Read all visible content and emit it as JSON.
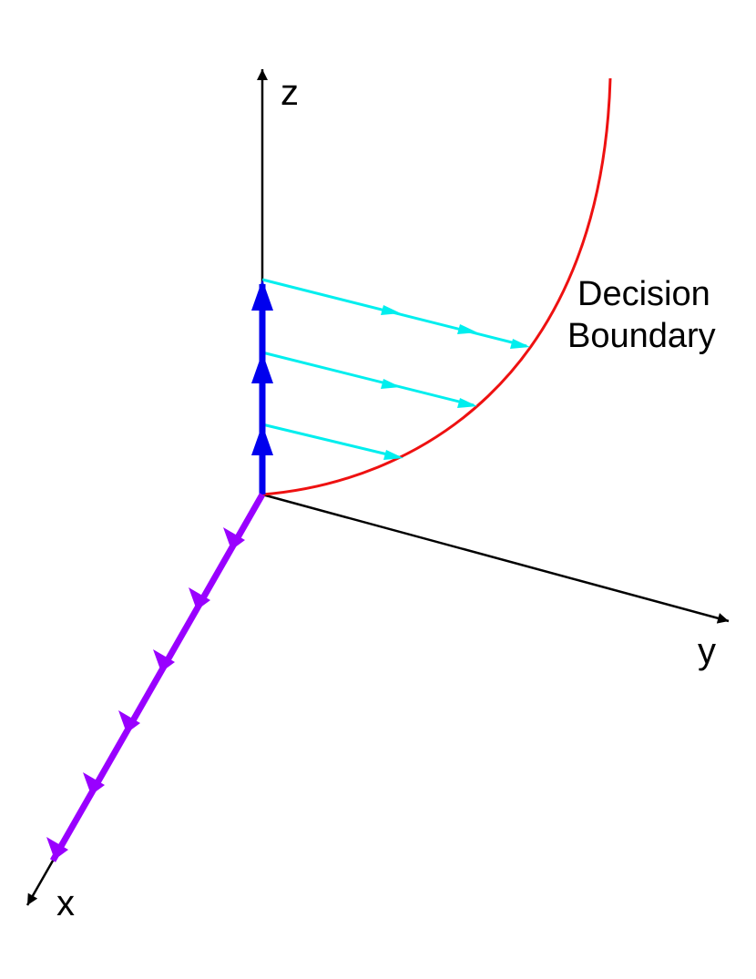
{
  "axes": {
    "x_label": "x",
    "y_label": "y",
    "z_label": "z"
  },
  "boundary": {
    "label_line1": "Decision",
    "label_line2": "Boundary"
  },
  "colors": {
    "axis": "#000000",
    "boundary": "#ee1111",
    "z_vectors": "#0000ee",
    "x_vectors": "#9900ff",
    "flow_arrows": "#00eeee"
  },
  "counts": {
    "z_vector_arrows": 3,
    "x_vector_arrows": 6,
    "flow_lines": 3
  }
}
